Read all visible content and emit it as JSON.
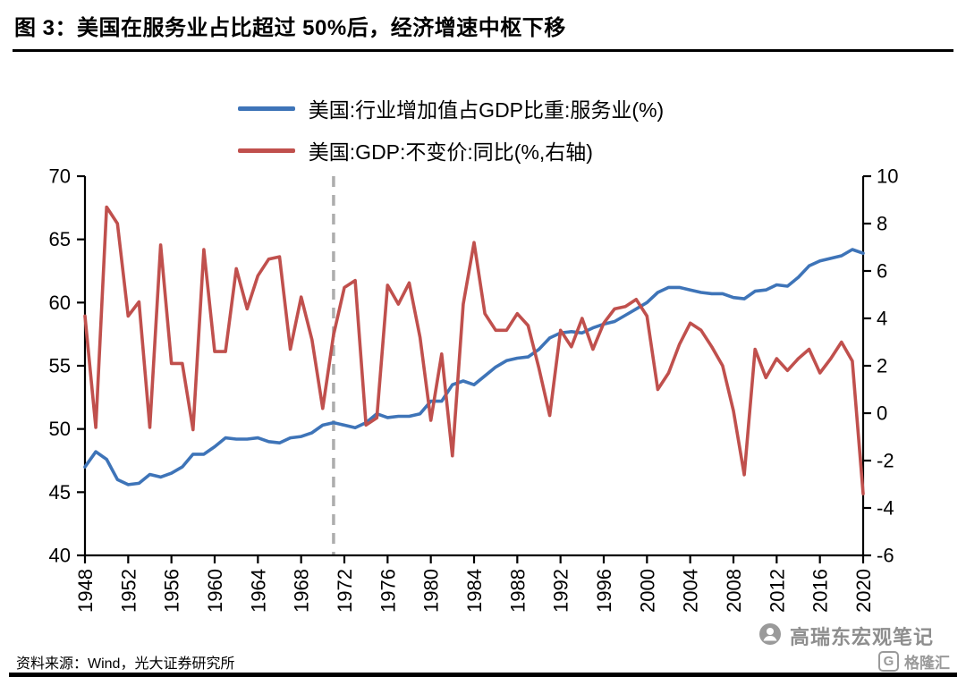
{
  "header": {
    "title": "图 3：美国在服务业占比超过 50%后，经济增速中枢下移"
  },
  "chart_data": {
    "type": "line",
    "title": "",
    "grid": false,
    "legend_position": "top",
    "x": [
      1948,
      1949,
      1950,
      1951,
      1952,
      1953,
      1954,
      1955,
      1956,
      1957,
      1958,
      1959,
      1960,
      1961,
      1962,
      1963,
      1964,
      1965,
      1966,
      1967,
      1968,
      1969,
      1970,
      1971,
      1972,
      1973,
      1974,
      1975,
      1976,
      1977,
      1978,
      1979,
      1980,
      1981,
      1982,
      1983,
      1984,
      1985,
      1986,
      1987,
      1988,
      1989,
      1990,
      1991,
      1992,
      1993,
      1994,
      1995,
      1996,
      1997,
      1998,
      1999,
      2000,
      2001,
      2002,
      2003,
      2004,
      2005,
      2006,
      2007,
      2008,
      2009,
      2010,
      2011,
      2012,
      2013,
      2014,
      2015,
      2016,
      2017,
      2018,
      2019,
      2020
    ],
    "series": [
      {
        "name": "美国:行业增加值占GDP比重:服务业(%)",
        "axis": "left",
        "color": "#3E74B8",
        "values": [
          47.0,
          48.2,
          47.6,
          46.0,
          45.6,
          45.7,
          46.4,
          46.2,
          46.5,
          47.0,
          48.0,
          48.0,
          48.6,
          49.3,
          49.2,
          49.2,
          49.3,
          49.0,
          48.9,
          49.3,
          49.4,
          49.7,
          50.3,
          50.5,
          50.3,
          50.1,
          50.5,
          51.2,
          50.9,
          51.0,
          51.0,
          51.2,
          52.2,
          52.2,
          53.5,
          53.8,
          53.5,
          54.2,
          54.9,
          55.4,
          55.6,
          55.7,
          56.3,
          57.2,
          57.6,
          57.7,
          57.6,
          58.0,
          58.3,
          58.5,
          59.0,
          59.5,
          60.0,
          60.8,
          61.2,
          61.2,
          61.0,
          60.8,
          60.7,
          60.7,
          60.4,
          60.3,
          60.9,
          61.0,
          61.4,
          61.3,
          62.0,
          62.9,
          63.3,
          63.5,
          63.7,
          64.2,
          63.9
        ]
      },
      {
        "name": "美国:GDP:不变价:同比(%,右轴)",
        "axis": "right",
        "color": "#C0504D",
        "values": [
          4.1,
          -0.6,
          8.7,
          8.0,
          4.1,
          4.7,
          -0.6,
          7.1,
          2.1,
          2.1,
          -0.7,
          6.9,
          2.6,
          2.6,
          6.1,
          4.4,
          5.8,
          6.5,
          6.6,
          2.7,
          4.9,
          3.1,
          0.2,
          3.3,
          5.3,
          5.6,
          -0.5,
          -0.2,
          5.4,
          4.6,
          5.5,
          3.2,
          -0.3,
          2.5,
          -1.8,
          4.6,
          7.2,
          4.2,
          3.5,
          3.5,
          4.2,
          3.7,
          1.9,
          -0.1,
          3.5,
          2.8,
          4.0,
          2.7,
          3.8,
          4.4,
          4.5,
          4.8,
          4.1,
          1.0,
          1.7,
          2.9,
          3.8,
          3.5,
          2.8,
          2.0,
          0.1,
          -2.6,
          2.7,
          1.5,
          2.3,
          1.8,
          2.3,
          2.7,
          1.7,
          2.3,
          3.0,
          2.2,
          -3.4
        ]
      }
    ],
    "left_axis": {
      "min": 40,
      "max": 70,
      "ticks": [
        40,
        45,
        50,
        55,
        60,
        65,
        70
      ]
    },
    "right_axis": {
      "min": -6,
      "max": 10,
      "ticks": [
        -6,
        -4,
        -2,
        0,
        2,
        4,
        6,
        8,
        10
      ]
    },
    "x_ticks": [
      1948,
      1952,
      1956,
      1960,
      1964,
      1968,
      1972,
      1976,
      1980,
      1984,
      1988,
      1992,
      1996,
      2000,
      2004,
      2008,
      2012,
      2016,
      2020
    ],
    "reference_line": {
      "x": 1971,
      "style": "dashed",
      "color": "#ADADAD"
    }
  },
  "footer": {
    "source": "资料来源：Wind，光大证券研究所",
    "watermark": "高瑞东宏观笔记",
    "logo": {
      "letter": "G",
      "text": "格隆汇"
    }
  }
}
